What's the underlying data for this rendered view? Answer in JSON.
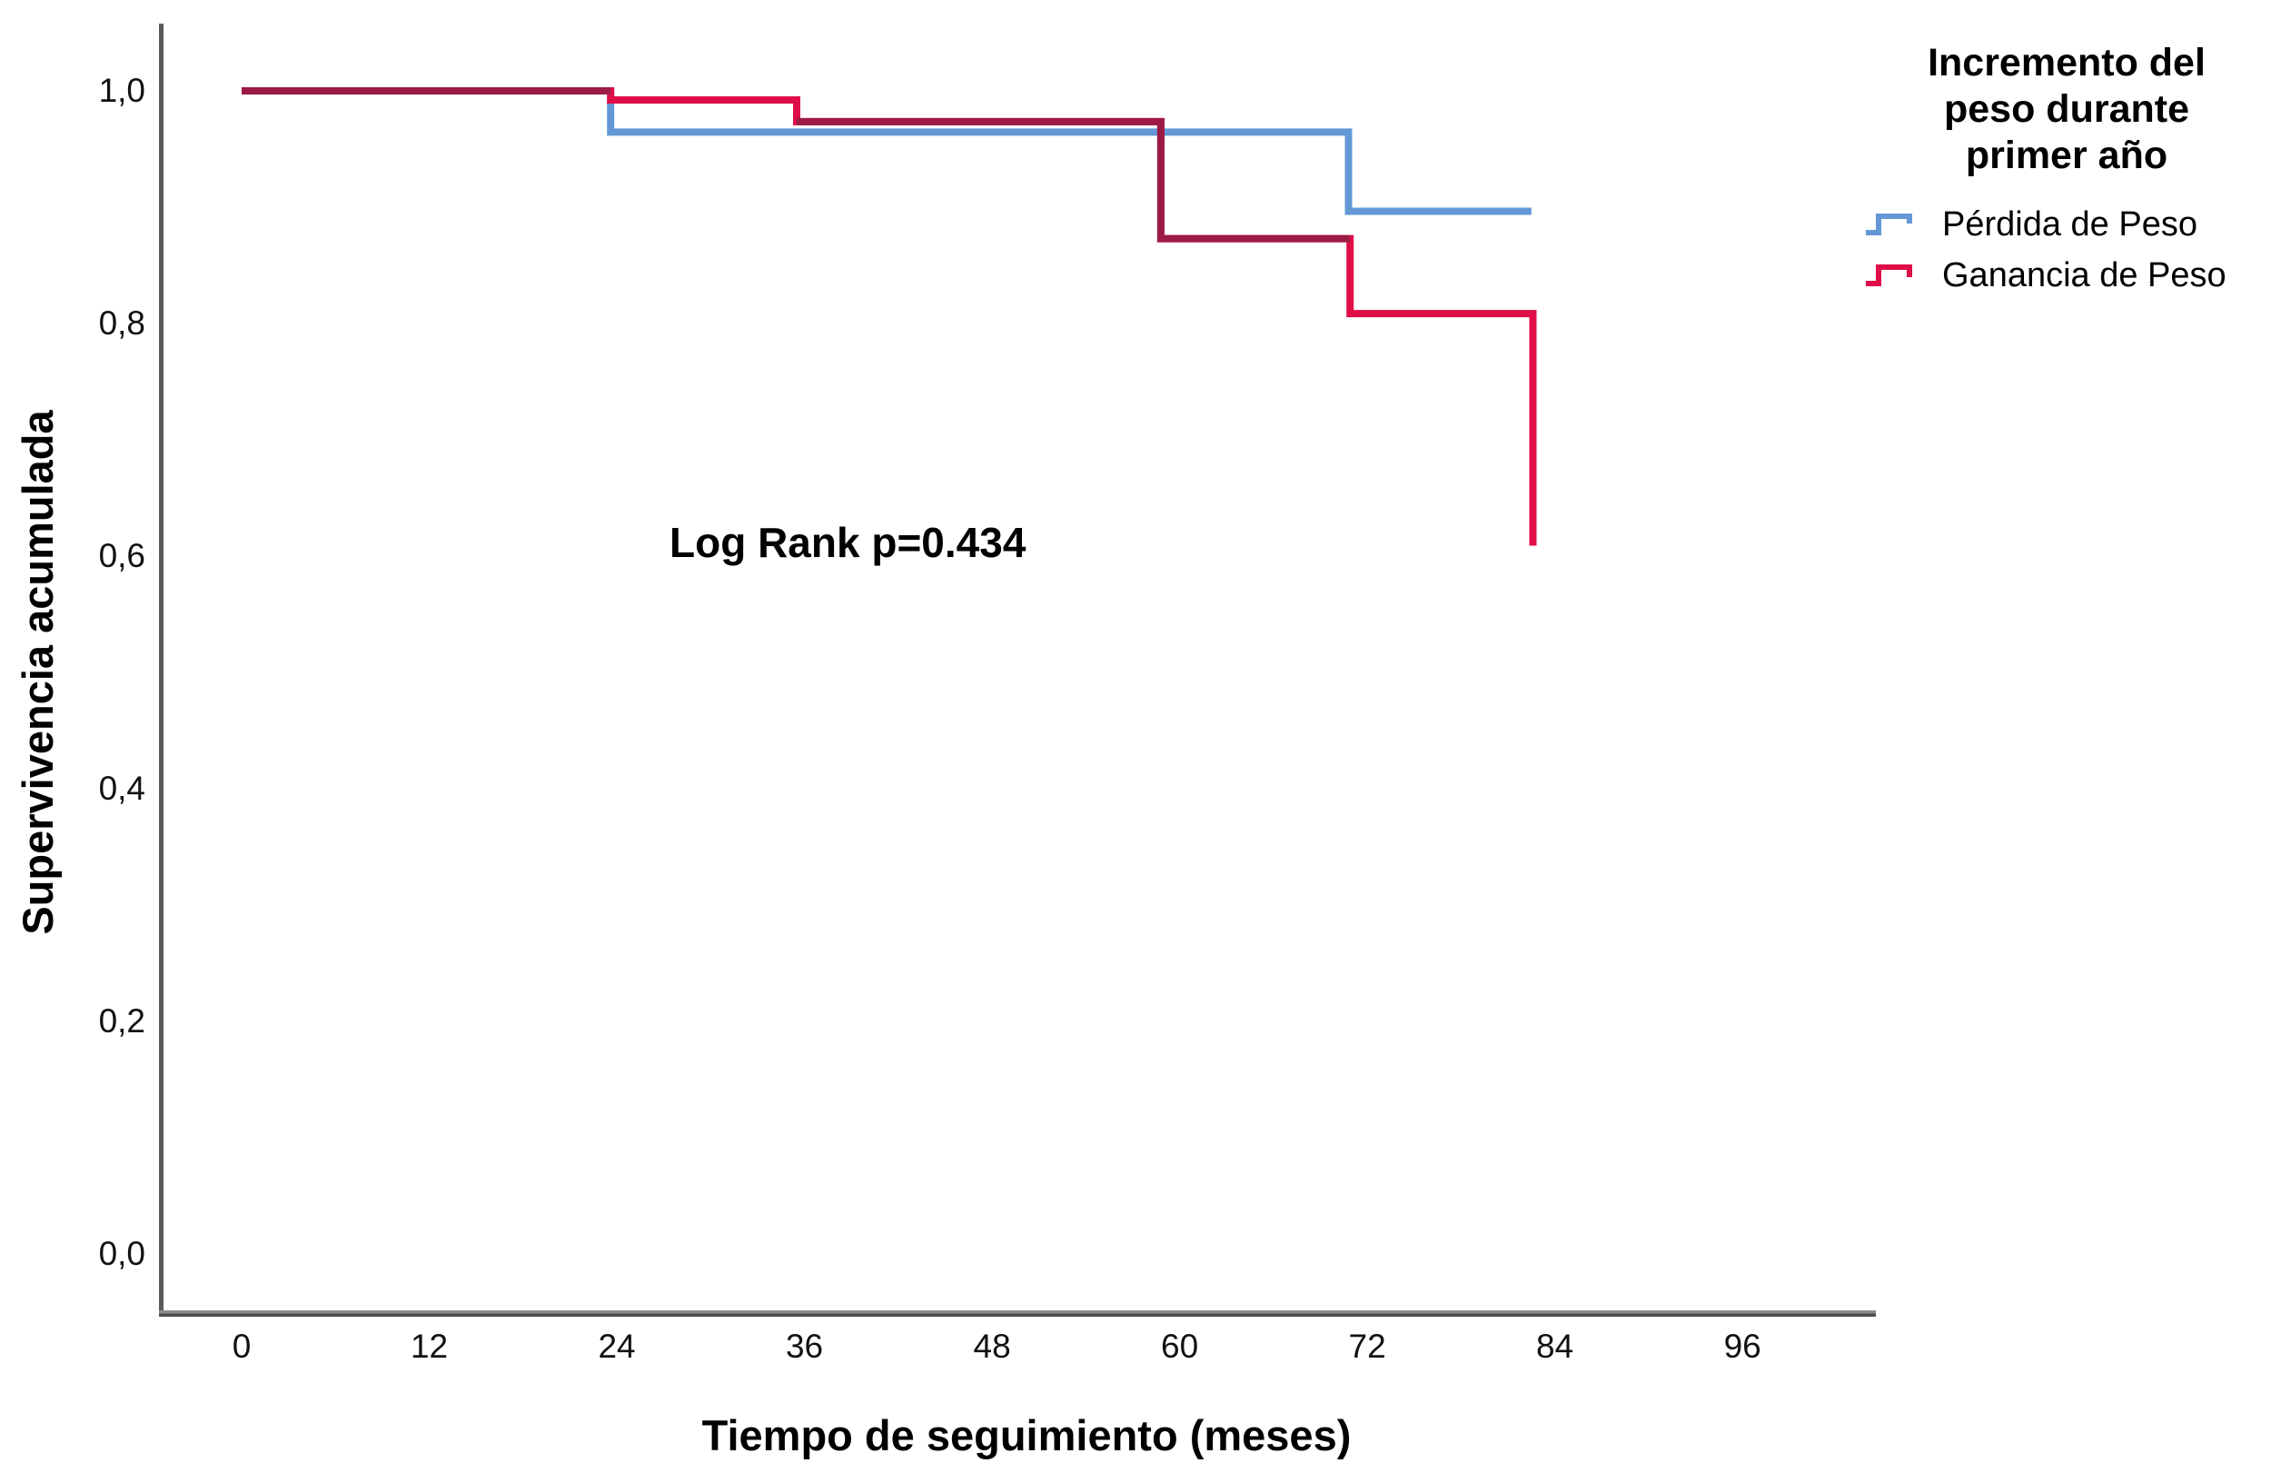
{
  "chart_data": {
    "type": "line",
    "subtype": "kaplan_meier_step",
    "title": "",
    "xlabel": "Tiempo de seguimiento (meses)",
    "ylabel": "Supervivencia acumulada",
    "x_ticks": [
      "0",
      "12",
      "24",
      "36",
      "48",
      "60",
      "72",
      "84",
      "96"
    ],
    "x_tick_values": [
      0,
      12,
      24,
      36,
      48,
      60,
      72,
      84,
      96
    ],
    "y_ticks": [
      "1,0",
      "0,8",
      "0,6",
      "0,4",
      "0,2",
      "0,0"
    ],
    "y_tick_values": [
      1.0,
      0.8,
      0.6,
      0.4,
      0.2,
      0.0
    ],
    "xlim": [
      -5.3,
      104.5
    ],
    "ylim": [
      -0.05,
      1.06
    ],
    "grid": "off",
    "annotation": "Log Rank p=0.434",
    "legend": {
      "position": "top-right",
      "title": "Incremento del peso durante primer año",
      "title_lines": [
        "Incremento del",
        "peso durante",
        "primer año"
      ]
    },
    "series": [
      {
        "name": "Pérdida de Peso",
        "color": "#6397D5",
        "points": [
          [
            0,
            1.0
          ],
          [
            23.6,
            1.0
          ],
          [
            23.6,
            0.9645
          ],
          [
            70.8,
            0.9645
          ],
          [
            70.8,
            0.8965
          ],
          [
            82.5,
            0.8965
          ]
        ]
      },
      {
        "name": "Ganancia de Peso",
        "color": "#DF0E48",
        "overlap_color": "#9C1B44",
        "points": [
          [
            0,
            1.0
          ],
          [
            23.6,
            1.0
          ],
          [
            23.6,
            0.9922
          ],
          [
            35.5,
            0.9922
          ],
          [
            35.5,
            0.9735
          ],
          [
            58.8,
            0.9735
          ],
          [
            58.8,
            0.873
          ],
          [
            70.9,
            0.873
          ],
          [
            70.9,
            0.8085
          ],
          [
            82.6,
            0.8085
          ],
          [
            82.6,
            0.609
          ]
        ],
        "overlap_segments": [
          [
            [
              0,
              1.0
            ],
            [
              23.6,
              1.0
            ]
          ],
          [
            [
              35.5,
              0.9735
            ],
            [
              58.8,
              0.9735
            ],
            [
              58.8,
              0.873
            ],
            [
              70.9,
              0.873
            ]
          ]
        ]
      }
    ]
  }
}
